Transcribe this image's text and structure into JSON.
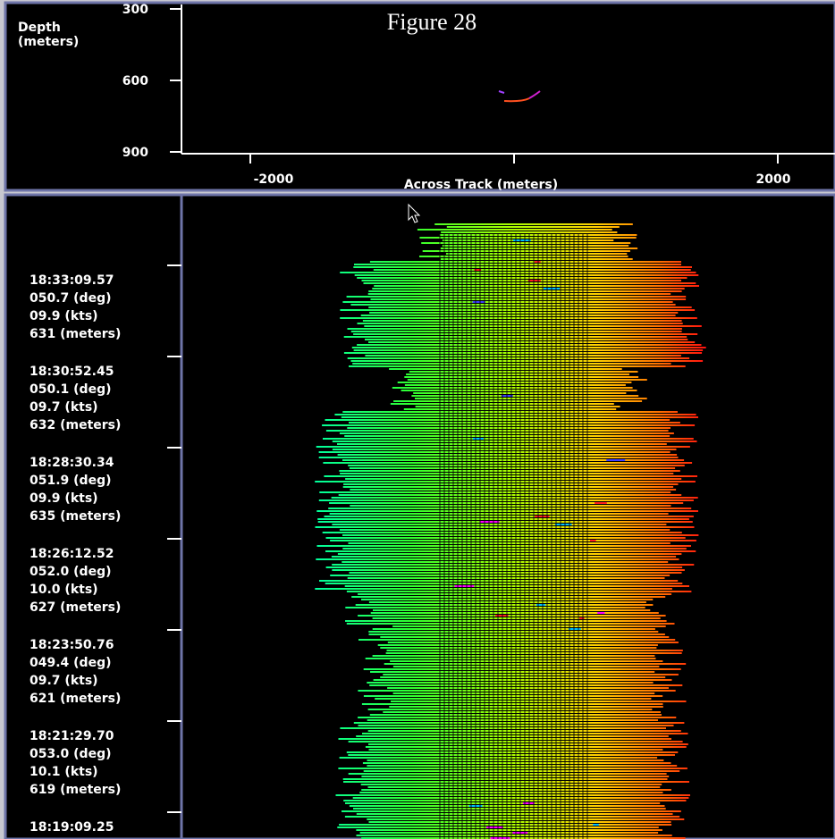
{
  "header": {
    "title": "Figure 28"
  },
  "profile": {
    "depth_label": "Depth\n(meters)",
    "depth_ticks": [
      "300",
      "600",
      "900"
    ],
    "across_ticks": [
      "-2000",
      "2000"
    ],
    "across_label": "Across Track (meters)"
  },
  "records": [
    {
      "time": "18:33:09.57",
      "heading": "050.7 (deg)",
      "speed": "09.9 (kts)",
      "depth": "631 (meters)"
    },
    {
      "time": "18:30:52.45",
      "heading": "050.1 (deg)",
      "speed": "09.7 (kts)",
      "depth": "632 (meters)"
    },
    {
      "time": "18:28:30.34",
      "heading": "051.9 (deg)",
      "speed": "09.9 (kts)",
      "depth": "635 (meters)"
    },
    {
      "time": "18:26:12.52",
      "heading": "052.0 (deg)",
      "speed": "10.0 (kts)",
      "depth": "627 (meters)"
    },
    {
      "time": "18:23:50.76",
      "heading": "049.4 (deg)",
      "speed": "09.7 (kts)",
      "depth": "621 (meters)"
    },
    {
      "time": "18:21:29.70",
      "heading": "053.0 (deg)",
      "speed": "10.1 (kts)",
      "depth": "619 (meters)"
    },
    {
      "time": "18:19:09.25"
    }
  ]
}
